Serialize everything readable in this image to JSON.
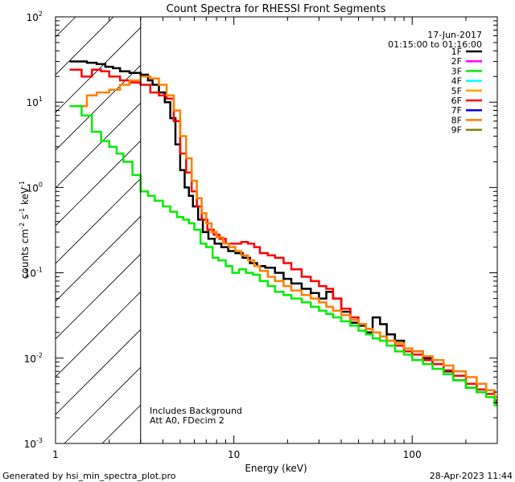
{
  "chart_data": {
    "type": "line",
    "title": "Count Spectra for RHESSI Front Segments",
    "xlabel": "Energy (keV)",
    "ylabel_parts": [
      "counts cm",
      "-2",
      " s",
      "-1",
      " keV",
      "-1"
    ],
    "x_scale": "log",
    "y_scale": "log",
    "xlim": [
      1,
      300
    ],
    "ylim": [
      0.001,
      100
    ],
    "x_ticks": [
      {
        "value": 1,
        "label": "1"
      },
      {
        "value": 10,
        "label": "10"
      },
      {
        "value": 100,
        "label": "100"
      }
    ],
    "y_ticks": [
      {
        "value": 0.001,
        "base": "10",
        "exp": "-3"
      },
      {
        "value": 0.01,
        "base": "10",
        "exp": "-2"
      },
      {
        "value": 0.1,
        "base": "10",
        "exp": "-1"
      },
      {
        "value": 1,
        "base": "10",
        "exp": "0"
      },
      {
        "value": 10,
        "base": "10",
        "exp": "1"
      },
      {
        "value": 100,
        "base": "10",
        "exp": "2"
      }
    ],
    "date": "17-Jun-2017",
    "time_range": "01:15:00 to 01:16:00",
    "shaded_region_keV": [
      1,
      3
    ],
    "annotations": [
      "Includes Background",
      "Att A0, FDecim 2"
    ],
    "legend": [
      {
        "label": "1F",
        "color": "#000000"
      },
      {
        "label": "2F",
        "color": "#ff00ff"
      },
      {
        "label": "3F",
        "color": "#00ee00"
      },
      {
        "label": "4F",
        "color": "#00ffff"
      },
      {
        "label": "5F",
        "color": "#ffa500"
      },
      {
        "label": "6F",
        "color": "#ff0000"
      },
      {
        "label": "7F",
        "color": "#0000ff"
      },
      {
        "label": "8F",
        "color": "#ff7f00"
      },
      {
        "label": "9F",
        "color": "#808000"
      }
    ],
    "series": [
      {
        "name": "1F",
        "color": "#000000",
        "points": [
          [
            1.2,
            30
          ],
          [
            1.5,
            29
          ],
          [
            1.7,
            28
          ],
          [
            1.9,
            26
          ],
          [
            2.1,
            25
          ],
          [
            2.3,
            23
          ],
          [
            2.6,
            22
          ],
          [
            3.0,
            21
          ],
          [
            3.3,
            18
          ],
          [
            3.5,
            16
          ],
          [
            3.8,
            13
          ],
          [
            4.1,
            10
          ],
          [
            4.4,
            6.5
          ],
          [
            4.7,
            3.2
          ],
          [
            5.0,
            1.6
          ],
          [
            5.3,
            1.0
          ],
          [
            5.6,
            0.8
          ],
          [
            5.9,
            0.6
          ],
          [
            6.3,
            0.42
          ],
          [
            6.7,
            0.3
          ],
          [
            7.2,
            0.25
          ],
          [
            7.8,
            0.22
          ],
          [
            8.5,
            0.2
          ],
          [
            9.3,
            0.18
          ],
          [
            10.2,
            0.17
          ],
          [
            11.2,
            0.15
          ],
          [
            12.3,
            0.13
          ],
          [
            13.5,
            0.12
          ],
          [
            15,
            0.115
          ],
          [
            17,
            0.1
          ],
          [
            19,
            0.085
          ],
          [
            21,
            0.075
          ],
          [
            24,
            0.065
          ],
          [
            27,
            0.058
          ],
          [
            30,
            0.05
          ],
          [
            33,
            0.06
          ],
          [
            36,
            0.05
          ],
          [
            40,
            0.035
          ],
          [
            45,
            0.026
          ],
          [
            50,
            0.024
          ],
          [
            55,
            0.02
          ],
          [
            60,
            0.03
          ],
          [
            66,
            0.025
          ],
          [
            72,
            0.019
          ],
          [
            80,
            0.016
          ],
          [
            90,
            0.013
          ],
          [
            100,
            0.012
          ],
          [
            115,
            0.01
          ],
          [
            130,
            0.0085
          ],
          [
            150,
            0.007
          ],
          [
            170,
            0.0055
          ],
          [
            200,
            0.0045
          ],
          [
            230,
            0.004
          ],
          [
            260,
            0.0035
          ],
          [
            290,
            0.003
          ]
        ]
      },
      {
        "name": "6F",
        "color": "#ff0000",
        "points": [
          [
            1.2,
            24
          ],
          [
            1.4,
            20
          ],
          [
            1.6,
            24
          ],
          [
            1.8,
            23
          ],
          [
            2.0,
            20
          ],
          [
            2.3,
            18
          ],
          [
            2.6,
            17
          ],
          [
            3.0,
            16
          ],
          [
            3.4,
            13
          ],
          [
            3.8,
            12
          ],
          [
            4.2,
            11
          ],
          [
            4.6,
            6
          ],
          [
            5.0,
            2.5
          ],
          [
            5.4,
            1.5
          ],
          [
            5.8,
            0.9
          ],
          [
            6.2,
            0.6
          ],
          [
            6.6,
            0.42
          ],
          [
            7.1,
            0.32
          ],
          [
            7.7,
            0.28
          ],
          [
            8.3,
            0.25
          ],
          [
            9.0,
            0.22
          ],
          [
            10,
            0.22
          ],
          [
            11,
            0.23
          ],
          [
            12,
            0.22
          ],
          [
            13,
            0.2
          ],
          [
            14,
            0.17
          ],
          [
            15.5,
            0.16
          ],
          [
            17,
            0.15
          ],
          [
            19,
            0.13
          ],
          [
            21,
            0.11
          ],
          [
            24,
            0.09
          ],
          [
            27,
            0.08
          ],
          [
            30,
            0.07
          ],
          [
            33,
            0.065
          ],
          [
            36,
            0.05
          ],
          [
            40,
            0.038
          ],
          [
            45,
            0.03
          ],
          [
            50,
            0.025
          ],
          [
            55,
            0.022
          ],
          [
            60,
            0.02
          ],
          [
            66,
            0.018
          ],
          [
            72,
            0.016
          ],
          [
            80,
            0.014
          ],
          [
            90,
            0.012
          ],
          [
            100,
            0.011
          ],
          [
            115,
            0.0095
          ],
          [
            130,
            0.0085
          ],
          [
            150,
            0.0072
          ],
          [
            170,
            0.0062
          ],
          [
            200,
            0.005
          ],
          [
            230,
            0.0043
          ],
          [
            260,
            0.0038
          ],
          [
            290,
            0.0032
          ]
        ]
      },
      {
        "name": "8F",
        "color": "#ff7f00",
        "points": [
          [
            1.3,
            9
          ],
          [
            1.5,
            12
          ],
          [
            1.7,
            13
          ],
          [
            2.0,
            14
          ],
          [
            2.3,
            16
          ],
          [
            2.6,
            18
          ],
          [
            3.0,
            20
          ],
          [
            3.4,
            19
          ],
          [
            3.8,
            16
          ],
          [
            4.2,
            12
          ],
          [
            4.6,
            8
          ],
          [
            5.0,
            4
          ],
          [
            5.4,
            2.2
          ],
          [
            5.8,
            1.2
          ],
          [
            6.2,
            0.75
          ],
          [
            6.6,
            0.5
          ],
          [
            7.0,
            0.38
          ],
          [
            7.5,
            0.3
          ],
          [
            8.0,
            0.26
          ],
          [
            8.7,
            0.22
          ],
          [
            9.4,
            0.2
          ],
          [
            10.2,
            0.18
          ],
          [
            11,
            0.16
          ],
          [
            12,
            0.14
          ],
          [
            13,
            0.12
          ],
          [
            14,
            0.105
          ],
          [
            15.5,
            0.09
          ],
          [
            17,
            0.08
          ],
          [
            19,
            0.07
          ],
          [
            21,
            0.062
          ],
          [
            24,
            0.055
          ],
          [
            27,
            0.05
          ],
          [
            30,
            0.045
          ],
          [
            33,
            0.04
          ],
          [
            36,
            0.036
          ],
          [
            40,
            0.032
          ],
          [
            45,
            0.028
          ],
          [
            50,
            0.025
          ],
          [
            55,
            0.022
          ],
          [
            60,
            0.02
          ],
          [
            66,
            0.018
          ],
          [
            72,
            0.016
          ],
          [
            80,
            0.015
          ],
          [
            90,
            0.013
          ],
          [
            100,
            0.012
          ],
          [
            115,
            0.0105
          ],
          [
            130,
            0.0095
          ],
          [
            150,
            0.0082
          ],
          [
            170,
            0.007
          ],
          [
            200,
            0.006
          ],
          [
            230,
            0.005
          ],
          [
            260,
            0.0042
          ],
          [
            290,
            0.0035
          ]
        ]
      },
      {
        "name": "3F",
        "color": "#00ee00",
        "points": [
          [
            1.2,
            9
          ],
          [
            1.4,
            7
          ],
          [
            1.6,
            4.5
          ],
          [
            1.8,
            3.5
          ],
          [
            2.0,
            3.0
          ],
          [
            2.2,
            2.5
          ],
          [
            2.4,
            2.0
          ],
          [
            2.7,
            1.4
          ],
          [
            3.0,
            0.9
          ],
          [
            3.3,
            0.8
          ],
          [
            3.6,
            0.7
          ],
          [
            4.0,
            0.6
          ],
          [
            4.4,
            0.52
          ],
          [
            4.8,
            0.45
          ],
          [
            5.2,
            0.42
          ],
          [
            5.6,
            0.38
          ],
          [
            6.0,
            0.32
          ],
          [
            6.5,
            0.22
          ],
          [
            7.0,
            0.2
          ],
          [
            7.6,
            0.15
          ],
          [
            8.2,
            0.14
          ],
          [
            9.0,
            0.12
          ],
          [
            9.8,
            0.1
          ],
          [
            10.7,
            0.11
          ],
          [
            11.7,
            0.1
          ],
          [
            12.8,
            0.095
          ],
          [
            14,
            0.08
          ],
          [
            15.5,
            0.07
          ],
          [
            17,
            0.06
          ],
          [
            19,
            0.055
          ],
          [
            21,
            0.05
          ],
          [
            24,
            0.045
          ],
          [
            27,
            0.04
          ],
          [
            30,
            0.036
          ],
          [
            33,
            0.033
          ],
          [
            36,
            0.03
          ],
          [
            40,
            0.027
          ],
          [
            45,
            0.024
          ],
          [
            50,
            0.021
          ],
          [
            55,
            0.019
          ],
          [
            60,
            0.017
          ],
          [
            66,
            0.016
          ],
          [
            72,
            0.014
          ],
          [
            80,
            0.012
          ],
          [
            90,
            0.011
          ],
          [
            100,
            0.0095
          ],
          [
            115,
            0.0085
          ],
          [
            130,
            0.0075
          ],
          [
            150,
            0.0065
          ],
          [
            170,
            0.0055
          ],
          [
            200,
            0.0045
          ],
          [
            230,
            0.004
          ],
          [
            260,
            0.0035
          ],
          [
            290,
            0.0028
          ]
        ]
      }
    ]
  },
  "footer": {
    "generated_by": "Generated by hsi_min_spectra_plot.pro",
    "timestamp": "28-Apr-2023 11:44"
  }
}
